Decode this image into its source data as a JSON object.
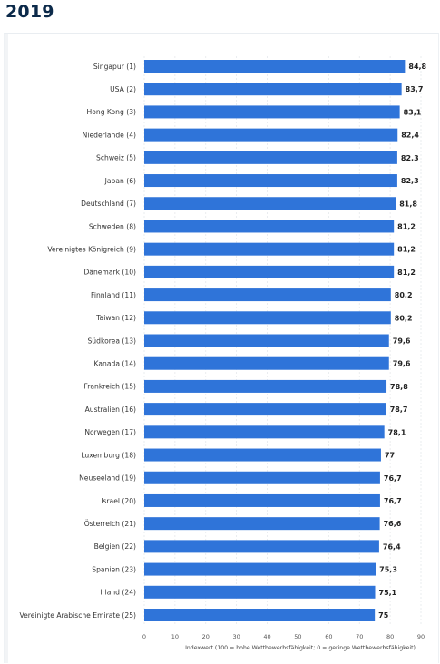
{
  "header": {
    "year": "2019"
  },
  "chart_data": {
    "type": "bar",
    "orientation": "horizontal",
    "bar_color": "#2f74d9",
    "categories": [
      "Singapur (1)",
      "USA (2)",
      "Hong Kong (3)",
      "Niederlande (4)",
      "Schweiz (5)",
      "Japan (6)",
      "Deutschland (7)",
      "Schweden (8)",
      "Vereinigtes Königreich (9)",
      "Dänemark (10)",
      "Finnland (11)",
      "Taiwan (12)",
      "Südkorea (13)",
      "Kanada (14)",
      "Frankreich (15)",
      "Australien (16)",
      "Norwegen (17)",
      "Luxemburg (18)",
      "Neuseeland (19)",
      "Israel (20)",
      "Österreich (21)",
      "Belgien (22)",
      "Spanien (23)",
      "Irland (24)",
      "Vereinigte Arabische Emirate (25)"
    ],
    "values": [
      84.8,
      83.7,
      83.1,
      82.4,
      82.3,
      82.3,
      81.8,
      81.2,
      81.2,
      81.2,
      80.2,
      80.2,
      79.6,
      79.6,
      78.8,
      78.7,
      78.1,
      77,
      76.7,
      76.7,
      76.6,
      76.4,
      75.3,
      75.1,
      75
    ],
    "value_labels": [
      "84,8",
      "83,7",
      "83,1",
      "82,4",
      "82,3",
      "82,3",
      "81,8",
      "81,2",
      "81,2",
      "81,2",
      "80,2",
      "80,2",
      "79,6",
      "79,6",
      "78,8",
      "78,7",
      "78,1",
      "77",
      "76,7",
      "76,7",
      "76,6",
      "76,4",
      "75,3",
      "75,1",
      "75"
    ],
    "xlim": [
      0,
      90
    ],
    "xticks": [
      "0",
      "10",
      "20",
      "30",
      "40",
      "50",
      "60",
      "70",
      "80",
      "90"
    ],
    "xlabel": "Indexwert (100 = hohe Wettbewerbsfähigkeit; 0 = geringe Wettbewerbsfähigkeit)",
    "grid": true
  }
}
